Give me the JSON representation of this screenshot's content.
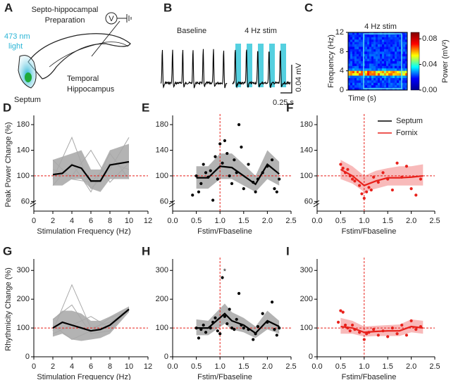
{
  "diagram": {
    "panel": "A",
    "title": [
      "Septo-hippocampal",
      "Preparation"
    ],
    "light": [
      "473 nm",
      "light"
    ],
    "septum": "Septum",
    "hippocampus": [
      "Temporal",
      "Hippocampus"
    ],
    "probe": "V"
  },
  "chart_data": [
    {
      "type": "trace",
      "panel": "B",
      "labels": [
        "Baseline",
        "4 Hz stim"
      ],
      "scale_y": "0.04 mV",
      "scale_x": "0.25 s"
    },
    {
      "type": "spectrogram",
      "panel": "C",
      "title": "4 Hz stim",
      "xlabel": "Time (s)",
      "ylabel": "Frequency (Hz)",
      "ylim": [
        0,
        12
      ],
      "yticks": [
        0,
        4,
        8,
        12
      ],
      "band_hz": 3.5,
      "clim": [
        0,
        0.09
      ],
      "cticks": [
        {
          "value": 0,
          "label": "0.00"
        },
        {
          "value": 0.04,
          "label": "0.04"
        },
        {
          "value": 0.08,
          "label": "0.08"
        }
      ],
      "colorbar_label": "Power (mV²)"
    },
    {
      "type": "line",
      "panel": "D",
      "ylabel": "Peak Power Change (%)",
      "xlabel": "Stimulation Frequency (Hz)",
      "xlim": [
        0,
        12
      ],
      "xticks": [
        0,
        2,
        4,
        6,
        8,
        10,
        12
      ],
      "ylim": [
        45,
        190
      ],
      "yticks": [
        60,
        100,
        140,
        180
      ],
      "hline": 100,
      "individual_x": [
        2,
        4,
        6,
        8,
        10
      ],
      "individual": [
        [
          95,
          160,
          80,
          110,
          160
        ],
        [
          110,
          100,
          140,
          90,
          120
        ],
        [
          85,
          120,
          75,
          135,
          95
        ],
        [
          125,
          95,
          90,
          120,
          110
        ]
      ],
      "series": [
        {
          "color": "#000000",
          "band": "#9a9a9a",
          "x": [
            2,
            3,
            4,
            5,
            6,
            7,
            8,
            10
          ],
          "values": [
            102,
            104,
            117,
            112,
            92,
            92,
            117,
            122
          ],
          "lower": [
            85,
            85,
            95,
            95,
            80,
            75,
            95,
            95
          ],
          "upper": [
            125,
            130,
            135,
            140,
            110,
            110,
            140,
            150
          ]
        }
      ]
    },
    {
      "type": "line",
      "panel": "E",
      "xlabel": "Fstim/Fbaseline",
      "xlim": [
        0,
        2.5
      ],
      "xticks": [
        {
          "value": 0,
          "label": "0.0"
        },
        0.5,
        {
          "value": 1,
          "label": "1.0"
        },
        1.5,
        {
          "value": 2,
          "label": "2.0"
        },
        2.5
      ],
      "ylim": [
        45,
        190
      ],
      "yticks": [
        60,
        100,
        140,
        180
      ],
      "hline": 100,
      "vline": 1,
      "scatter": {
        "x": [
          0.42,
          0.5,
          0.55,
          0.6,
          0.65,
          0.7,
          0.75,
          0.8,
          0.85,
          0.9,
          0.95,
          1.0,
          1.05,
          1.1,
          1.15,
          1.2,
          1.25,
          1.3,
          1.35,
          1.4,
          1.45,
          1.5,
          1.6,
          1.7,
          1.75,
          1.8,
          1.9,
          2.0,
          2.1,
          2.15,
          2.2,
          2.25
        ],
        "y": [
          70,
          100,
          75,
          88,
          118,
          105,
          98,
          108,
          62,
          130,
          95,
          150,
          120,
          155,
          135,
          100,
          88,
          125,
          105,
          180,
          145,
          80,
          118,
          90,
          75,
          95,
          105,
          115,
          125,
          80,
          75,
          95
        ]
      },
      "series": [
        {
          "name": "Septum",
          "color": "#000000",
          "band": "#9a9a9a",
          "x": [
            0.5,
            0.75,
            1,
            1.25,
            1.5,
            1.75,
            2,
            2.25
          ],
          "values": [
            97,
            97,
            115,
            113,
            100,
            87,
            118,
            103
          ],
          "lower": [
            80,
            80,
            95,
            95,
            85,
            75,
            95,
            85
          ],
          "upper": [
            115,
            115,
            135,
            135,
            118,
            100,
            140,
            122
          ]
        }
      ]
    },
    {
      "type": "line",
      "panel": "F",
      "xlabel": "Fstim/Fbaseline",
      "xlim": [
        0,
        2.5
      ],
      "xticks": [
        {
          "value": 0,
          "label": "0.0"
        },
        0.5,
        {
          "value": 1,
          "label": "1.0"
        },
        1.5,
        {
          "value": 2,
          "label": "2.0"
        },
        2.5
      ],
      "ylim": [
        45,
        190
      ],
      "yticks": [
        60,
        100,
        140,
        180
      ],
      "hline": 100,
      "vline": 1,
      "scatter": {
        "x": [
          0.5,
          0.55,
          0.6,
          0.65,
          0.7,
          0.75,
          0.8,
          0.9,
          0.95,
          1.0,
          1.05,
          1.1,
          1.15,
          1.2,
          1.3,
          1.4,
          1.5,
          1.6,
          1.7,
          1.8,
          1.9,
          2.0,
          2.1,
          2.2
        ],
        "y": [
          118,
          112,
          105,
          110,
          100,
          95,
          92,
          85,
          72,
          65,
          75,
          82,
          78,
          98,
          90,
          105,
          95,
          78,
          120,
          98,
          115,
          80,
          70,
          95
        ]
      },
      "series": [
        {
          "name": "Fornix",
          "color": "#e8211b",
          "band": "#f5a3a3",
          "x": [
            0.5,
            0.75,
            1,
            1.25,
            1.5,
            1.75,
            2,
            2.25
          ],
          "values": [
            110,
            100,
            85,
            92,
            97,
            97,
            98,
            100
          ],
          "lower": [
            95,
            88,
            75,
            80,
            85,
            85,
            85,
            85
          ],
          "upper": [
            125,
            115,
            100,
            108,
            112,
            115,
            115,
            118
          ]
        }
      ]
    },
    {
      "type": "line",
      "panel": "G",
      "ylabel": "Rhythmicity Change (%)",
      "xlabel": "Stimulation Frequency (Hz)",
      "xlim": [
        0,
        12
      ],
      "xticks": [
        0,
        2,
        4,
        6,
        8,
        10,
        12
      ],
      "ylim": [
        0,
        330
      ],
      "yticks": [
        0,
        100,
        200,
        300
      ],
      "hline": 100,
      "individual_x": [
        2,
        4,
        6,
        8,
        10
      ],
      "individual": [
        [
          90,
          250,
          100,
          120,
          160
        ],
        [
          130,
          180,
          80,
          90,
          170
        ],
        [
          80,
          110,
          140,
          100,
          165
        ],
        [
          110,
          60,
          90,
          135,
          160
        ]
      ],
      "series": [
        {
          "color": "#000000",
          "band": "#9a9a9a",
          "x": [
            2,
            3,
            4,
            5,
            6,
            7,
            8,
            10
          ],
          "values": [
            100,
            120,
            110,
            100,
            90,
            95,
            110,
            165
          ],
          "lower": [
            70,
            80,
            60,
            55,
            60,
            65,
            80,
            155
          ],
          "upper": [
            130,
            160,
            160,
            150,
            125,
            125,
            140,
            175
          ]
        }
      ]
    },
    {
      "type": "line",
      "panel": "H",
      "xlabel": "Fstim/Fbaseline",
      "xlim": [
        0,
        2.5
      ],
      "xticks": [
        {
          "value": 0,
          "label": "0.0"
        },
        0.5,
        {
          "value": 1,
          "label": "1.0"
        },
        1.5,
        {
          "value": 2,
          "label": "2.0"
        },
        2.5
      ],
      "ylim": [
        0,
        330
      ],
      "yticks": [
        0,
        100,
        200,
        300
      ],
      "hline": 100,
      "vline": 1,
      "annotation": {
        "text": "*",
        "x": 1.1,
        "y": 295
      },
      "scatter": {
        "x": [
          0.5,
          0.55,
          0.6,
          0.65,
          0.7,
          0.8,
          0.85,
          0.9,
          0.95,
          1.0,
          1.05,
          1.1,
          1.15,
          1.2,
          1.25,
          1.3,
          1.35,
          1.4,
          1.45,
          1.5,
          1.6,
          1.7,
          1.75,
          1.8,
          1.9,
          2.0,
          2.1,
          2.15,
          2.2,
          2.25
        ],
        "y": [
          100,
          65,
          95,
          110,
          85,
          100,
          120,
          135,
          90,
          80,
          275,
          140,
          115,
          165,
          100,
          95,
          130,
          220,
          110,
          100,
          95,
          60,
          80,
          105,
          150,
          120,
          190,
          95,
          75,
          100
        ]
      },
      "series": [
        {
          "color": "#000000",
          "band": "#9a9a9a",
          "x": [
            0.5,
            0.75,
            1.1,
            1.25,
            1.5,
            1.75,
            2,
            2.25
          ],
          "values": [
            100,
            100,
            150,
            125,
            110,
            82,
            125,
            105
          ],
          "lower": [
            75,
            75,
            115,
            95,
            85,
            65,
            95,
            80
          ],
          "upper": [
            130,
            125,
            185,
            155,
            135,
            105,
            160,
            125
          ]
        }
      ]
    },
    {
      "type": "line",
      "panel": "I",
      "xlabel": "Fstim/Fbaseline",
      "xlim": [
        0,
        2.5
      ],
      "xticks": [
        {
          "value": 0,
          "label": "0.0"
        },
        0.5,
        {
          "value": 1,
          "label": "1.0"
        },
        1.5,
        {
          "value": 2,
          "label": "2.0"
        },
        2.5
      ],
      "ylim": [
        0,
        330
      ],
      "yticks": [
        0,
        100,
        200,
        300
      ],
      "hline": 100,
      "vline": 1,
      "scatter": {
        "x": [
          0.45,
          0.5,
          0.55,
          0.6,
          0.65,
          0.7,
          0.75,
          0.8,
          0.9,
          1.0,
          1.05,
          1.1,
          1.2,
          1.3,
          1.4,
          1.5,
          1.6,
          1.7,
          1.8,
          1.9,
          2.0,
          2.1,
          2.2
        ],
        "y": [
          120,
          160,
          155,
          110,
          100,
          90,
          110,
          95,
          85,
          60,
          80,
          85,
          95,
          75,
          90,
          70,
          100,
          80,
          110,
          75,
          125,
          95,
          105
        ]
      },
      "series": [
        {
          "color": "#e8211b",
          "band": "#f5a3a3",
          "x": [
            0.5,
            0.75,
            1,
            1.25,
            1.5,
            1.75,
            2,
            2.25
          ],
          "values": [
            105,
            100,
            85,
            88,
            90,
            90,
            105,
            100
          ],
          "lower": [
            80,
            80,
            70,
            72,
            72,
            72,
            85,
            80
          ],
          "upper": [
            135,
            125,
            105,
            108,
            110,
            112,
            130,
            125
          ]
        }
      ]
    }
  ]
}
